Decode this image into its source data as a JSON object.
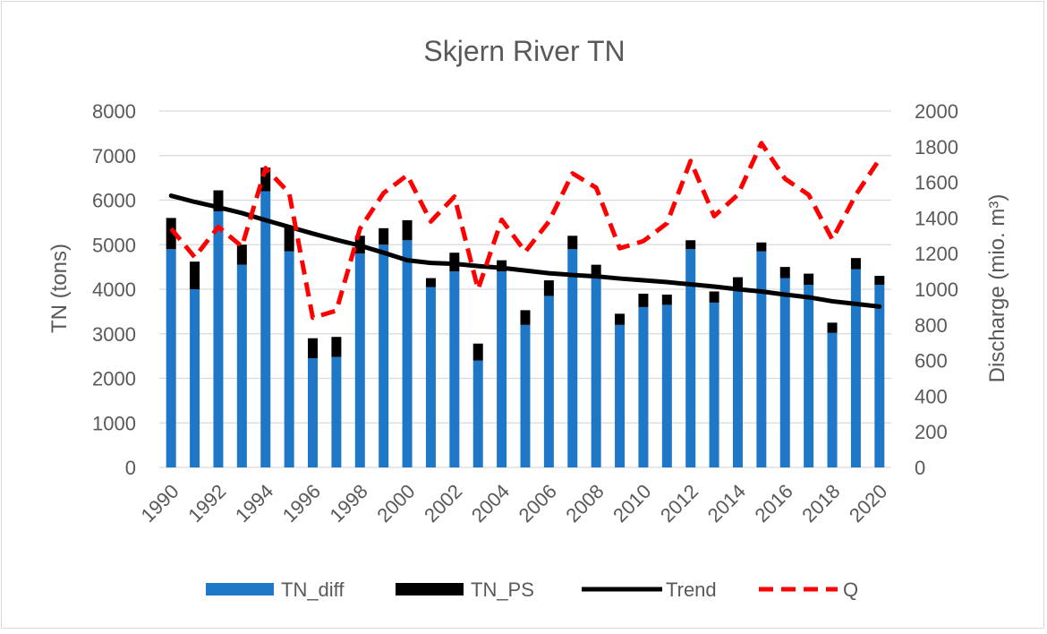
{
  "chart_data": {
    "type": "bar",
    "title": "Skjern River TN",
    "ylabel": "TN (tons)",
    "y2label": "Discharge (mio. m³)",
    "ylim": [
      0,
      8000
    ],
    "y2lim": [
      0,
      2000
    ],
    "yticks": [
      "0",
      "1000",
      "2000",
      "3000",
      "4000",
      "5000",
      "6000",
      "7000",
      "8000"
    ],
    "y2ticks": [
      "0",
      "200",
      "400",
      "600",
      "800",
      "1000",
      "1200",
      "1400",
      "1600",
      "1800",
      "2000"
    ],
    "xticks": [
      "1990",
      "1992",
      "1994",
      "1996",
      "1998",
      "2000",
      "2002",
      "2004",
      "2006",
      "2008",
      "2010",
      "2012",
      "2014",
      "2016",
      "2018",
      "2020"
    ],
    "x": [
      1990,
      1991,
      1992,
      1993,
      1994,
      1995,
      1996,
      1997,
      1998,
      1999,
      2000,
      2001,
      2002,
      2003,
      2004,
      2005,
      2006,
      2007,
      2008,
      2009,
      2010,
      2011,
      2012,
      2013,
      2014,
      2015,
      2016,
      2017,
      2018,
      2019,
      2020
    ],
    "stacked": true,
    "grid": true,
    "legend_position": "bottom",
    "series": [
      {
        "name": "TN_diff",
        "kind": "bar",
        "color": "#1f77c8",
        "values": [
          4900,
          4000,
          5750,
          4550,
          6200,
          4850,
          2450,
          2480,
          4800,
          5000,
          5100,
          4050,
          4400,
          2400,
          4400,
          3200,
          3850,
          4900,
          4300,
          3200,
          3600,
          3650,
          4900,
          3700,
          4000,
          4850,
          4250,
          4100,
          3020,
          4450,
          4100
        ]
      },
      {
        "name": "TN_PS",
        "kind": "bar",
        "color": "#000000",
        "values": [
          700,
          620,
          470,
          450,
          530,
          550,
          450,
          450,
          400,
          370,
          450,
          200,
          420,
          380,
          250,
          330,
          350,
          300,
          250,
          250,
          300,
          230,
          200,
          250,
          270,
          200,
          250,
          250,
          230,
          250,
          200
        ]
      },
      {
        "name": "Trend",
        "kind": "line",
        "color": "#000000",
        "axis": "left",
        "values": [
          6100,
          5960,
          5840,
          5710,
          5550,
          5400,
          5250,
          5110,
          4980,
          4820,
          4650,
          4590,
          4570,
          4520,
          4480,
          4420,
          4360,
          4320,
          4290,
          4240,
          4200,
          4160,
          4110,
          4060,
          4000,
          3950,
          3880,
          3820,
          3730,
          3670,
          3610
        ]
      },
      {
        "name": "Q",
        "kind": "line",
        "color": "#ff0000",
        "dashed": true,
        "axis": "right",
        "values": [
          1340,
          1180,
          1350,
          1240,
          1680,
          1540,
          840,
          880,
          1340,
          1540,
          1640,
          1380,
          1520,
          1000,
          1390,
          1210,
          1380,
          1650,
          1570,
          1230,
          1270,
          1370,
          1720,
          1410,
          1530,
          1820,
          1620,
          1530,
          1280,
          1530,
          1730
        ]
      }
    ]
  }
}
